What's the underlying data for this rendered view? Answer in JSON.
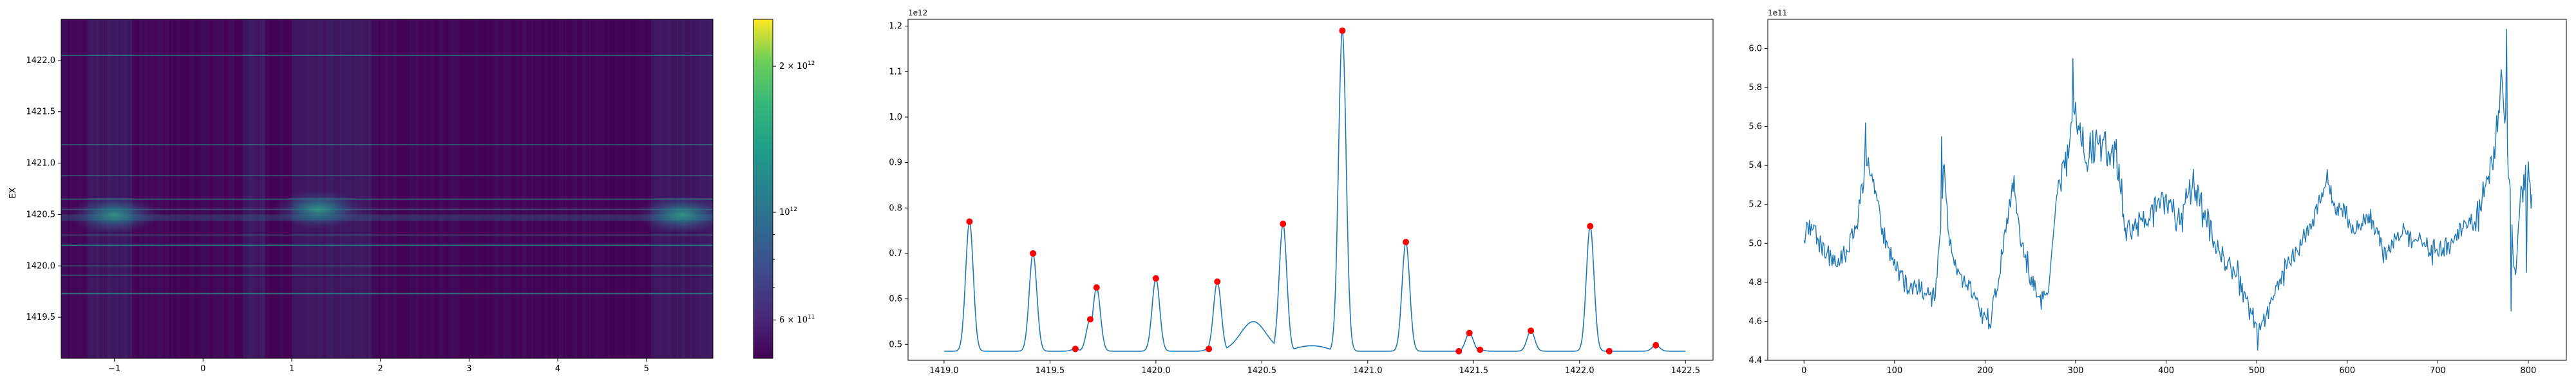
{
  "chart_data": [
    {
      "type": "heatmap",
      "ylabel": "EX",
      "x_ticks": [
        "−1",
        "0",
        "1",
        "2",
        "3",
        "4",
        "5"
      ],
      "x_tick_values": [
        -1,
        0,
        1,
        2,
        3,
        4,
        5
      ],
      "xlim": [
        -1.6,
        5.75
      ],
      "y_ticks": [
        "1419.5",
        "1420.0",
        "1420.5",
        "1421.0",
        "1421.5",
        "1422.0"
      ],
      "y_tick_values": [
        1419.5,
        1420.0,
        1420.5,
        1421.0,
        1421.5,
        1422.0
      ],
      "ylim": [
        1419.1,
        1422.4
      ],
      "colorbar": {
        "scale": "log",
        "colormap": "viridis",
        "range": [
          500000000000.0,
          2500000000000.0
        ],
        "ticks": [
          {
            "value": 600000000000.0,
            "mantissa": "6 × 10",
            "exp": "11"
          },
          {
            "value": 1000000000000.0,
            "mantissa": "10",
            "exp": "12"
          },
          {
            "value": 2000000000000.0,
            "mantissa": "2 × 10",
            "exp": "12"
          }
        ]
      },
      "horizontal_lines_y": [
        1419.73,
        1419.91,
        1420.0,
        1420.2,
        1420.3,
        1420.55,
        1420.65,
        1420.88,
        1421.18,
        1422.05
      ],
      "bright_blobs": [
        {
          "x": -1.0,
          "y": 1420.5,
          "intensity": 0.55
        },
        {
          "x": 1.3,
          "y": 1420.55,
          "intensity": 0.6
        },
        {
          "x": 5.4,
          "y": 1420.5,
          "intensity": 0.6
        }
      ],
      "band_y": 1420.47
    },
    {
      "type": "line",
      "offset_label": "1e12",
      "x_ticks": [
        "1419.0",
        "1419.5",
        "1420.0",
        "1420.5",
        "1421.0",
        "1421.5",
        "1422.0",
        "1422.5"
      ],
      "x_tick_values": [
        1419.0,
        1419.5,
        1420.0,
        1420.5,
        1421.0,
        1421.5,
        1422.0,
        1422.5
      ],
      "y_ticks": [
        "0.5",
        "0.6",
        "0.7",
        "0.8",
        "0.9",
        "1.0",
        "1.1",
        "1.2"
      ],
      "y_tick_values": [
        0.5,
        0.6,
        0.7,
        0.8,
        0.9,
        1.0,
        1.1,
        1.2
      ],
      "xlim": [
        1418.83,
        1422.63
      ],
      "ylim": [
        0.465,
        1.215
      ],
      "baseline": 0.485,
      "line_color": "#1f77b4",
      "marker_color": "#ff0000",
      "x_range": [
        1419.0,
        1422.5
      ],
      "peaks": [
        {
          "x": 1419.12,
          "y": 0.77
        },
        {
          "x": 1419.42,
          "y": 0.7
        },
        {
          "x": 1419.62,
          "y": 0.49
        },
        {
          "x": 1419.69,
          "y": 0.555
        },
        {
          "x": 1419.72,
          "y": 0.625
        },
        {
          "x": 1420.0,
          "y": 0.645
        },
        {
          "x": 1420.25,
          "y": 0.49
        },
        {
          "x": 1420.29,
          "y": 0.638
        },
        {
          "x": 1420.6,
          "y": 0.765
        },
        {
          "x": 1420.88,
          "y": 1.19
        },
        {
          "x": 1421.18,
          "y": 0.725
        },
        {
          "x": 1421.43,
          "y": 0.485
        },
        {
          "x": 1421.48,
          "y": 0.525
        },
        {
          "x": 1421.53,
          "y": 0.488
        },
        {
          "x": 1421.77,
          "y": 0.53
        },
        {
          "x": 1422.05,
          "y": 0.76
        },
        {
          "x": 1422.14,
          "y": 0.485
        },
        {
          "x": 1422.36,
          "y": 0.498
        }
      ],
      "bump": {
        "start": 1420.3,
        "peak_x": 1420.46,
        "peak_y": 0.55,
        "end": 1420.62
      },
      "shoulder": {
        "start": 1420.62,
        "peak_x": 1420.78,
        "peak_y": 0.497,
        "end": 1420.85
      }
    },
    {
      "type": "line",
      "offset_label": "1e11",
      "x_ticks": [
        "0",
        "100",
        "200",
        "300",
        "400",
        "500",
        "600",
        "700",
        "800"
      ],
      "x_tick_values": [
        0,
        100,
        200,
        300,
        400,
        500,
        600,
        700,
        800
      ],
      "y_ticks": [
        "4.4",
        "4.6",
        "4.8",
        "5.0",
        "5.2",
        "5.4",
        "5.6",
        "5.8",
        "6.0"
      ],
      "y_tick_values": [
        4.4,
        4.6,
        4.8,
        5.0,
        5.2,
        5.4,
        5.6,
        5.8,
        6.0
      ],
      "xlim": [
        -40,
        842
      ],
      "ylim": [
        4.4,
        6.15
      ],
      "line_color": "#1f77b4",
      "n_points": 805,
      "anchors": [
        [
          0,
          5.05
        ],
        [
          10,
          5.08
        ],
        [
          20,
          4.98
        ],
        [
          30,
          4.92
        ],
        [
          40,
          4.9
        ],
        [
          50,
          4.97
        ],
        [
          60,
          5.15
        ],
        [
          68,
          5.4
        ],
        [
          75,
          5.35
        ],
        [
          85,
          5.1
        ],
        [
          95,
          4.95
        ],
        [
          110,
          4.8
        ],
        [
          130,
          4.75
        ],
        [
          145,
          4.73
        ],
        [
          150,
          5.05
        ],
        [
          155,
          5.4
        ],
        [
          160,
          5.0
        ],
        [
          170,
          4.85
        ],
        [
          185,
          4.75
        ],
        [
          195,
          4.65
        ],
        [
          205,
          4.6
        ],
        [
          215,
          4.8
        ],
        [
          225,
          5.15
        ],
        [
          232,
          5.3
        ],
        [
          240,
          5.0
        ],
        [
          250,
          4.82
        ],
        [
          262,
          4.72
        ],
        [
          270,
          4.75
        ],
        [
          280,
          5.3
        ],
        [
          292,
          5.45
        ],
        [
          298,
          5.7
        ],
        [
          310,
          5.45
        ],
        [
          330,
          5.5
        ],
        [
          345,
          5.45
        ],
        [
          355,
          5.05
        ],
        [
          375,
          5.1
        ],
        [
          395,
          5.25
        ],
        [
          415,
          5.12
        ],
        [
          430,
          5.3
        ],
        [
          445,
          5.1
        ],
        [
          460,
          4.95
        ],
        [
          475,
          4.85
        ],
        [
          490,
          4.7
        ],
        [
          500,
          4.55
        ],
        [
          515,
          4.7
        ],
        [
          530,
          4.85
        ],
        [
          545,
          4.95
        ],
        [
          560,
          5.1
        ],
        [
          575,
          5.3
        ],
        [
          590,
          5.2
        ],
        [
          610,
          5.05
        ],
        [
          625,
          5.15
        ],
        [
          640,
          4.95
        ],
        [
          660,
          5.05
        ],
        [
          680,
          5.0
        ],
        [
          700,
          4.95
        ],
        [
          720,
          5.05
        ],
        [
          740,
          5.1
        ],
        [
          755,
          5.3
        ],
        [
          765,
          5.55
        ],
        [
          770,
          5.85
        ],
        [
          775,
          5.6
        ],
        [
          780,
          5.25
        ],
        [
          785,
          4.8
        ],
        [
          790,
          5.2
        ],
        [
          797,
          5.35
        ],
        [
          805,
          5.2
        ]
      ],
      "spikes": [
        [
          297,
          5.95
        ],
        [
          305,
          5.62
        ],
        [
          152,
          5.55
        ],
        [
          68,
          5.62
        ],
        [
          232,
          5.35
        ],
        [
          501,
          4.45
        ],
        [
          578,
          5.38
        ],
        [
          776,
          6.1
        ],
        [
          781,
          4.65
        ],
        [
          798,
          4.85
        ],
        [
          800,
          5.42
        ]
      ]
    }
  ]
}
